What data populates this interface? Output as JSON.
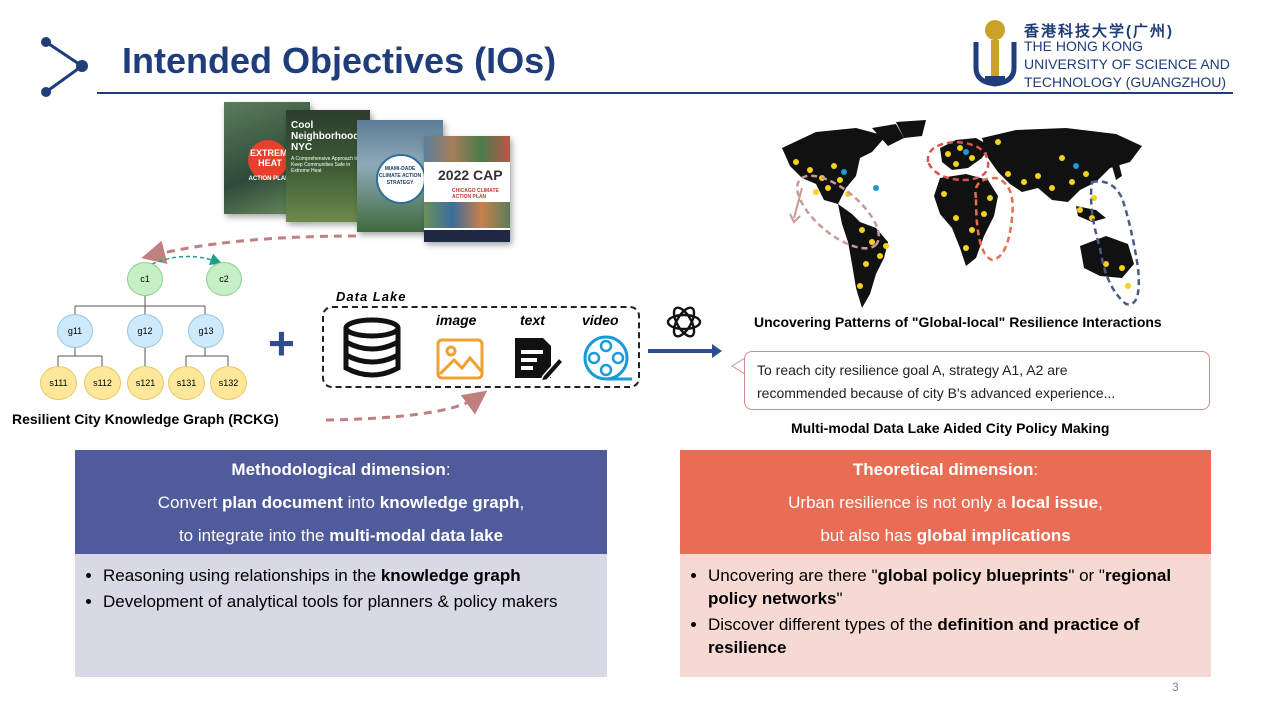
{
  "header": {
    "title": "Intended Objectives (IOs)",
    "university_cn": "香港科技大学(广州)",
    "university_en": [
      "THE HONG KONG",
      "UNIVERSITY OF SCIENCE AND",
      "TECHNOLOGY (GUANGZHOU)"
    ]
  },
  "covers": [
    {
      "text": "EXTREME HEAT",
      "sub": "ACTION PLAN"
    },
    {
      "text": "Cool Neighborhoods NYC",
      "sub": "A Comprehensive Approach to Keep Communities Safe in Extreme Heat"
    },
    {
      "text": "MIAMI-DADE CLIMATE ACTION STRATEGY",
      "sub": ""
    },
    {
      "text": "2022 CAP",
      "sub": "CHICAGO CLIMATE ACTION PLAN"
    }
  ],
  "graph": {
    "nodes": {
      "c1": "c1",
      "c2": "c2",
      "g11": "g11",
      "g12": "g12",
      "g13": "g13",
      "s111": "s111",
      "s112": "s112",
      "s121": "s121",
      "s131": "s131",
      "s132": "s132"
    },
    "label": "Resilient City Knowledge Graph (RCKG)"
  },
  "data_lake": {
    "title": "Data Lake",
    "labels": {
      "image": "image",
      "text": "text",
      "video": "video"
    }
  },
  "map": {
    "caption": "Uncovering Patterns of \"Global-local\" Resilience Interactions"
  },
  "callout": {
    "line1": "To reach city resilience goal A, strategy A1, A2 are",
    "line2": "recommended because of city B's advanced experience...",
    "caption": "Multi-modal Data Lake Aided City Policy Making"
  },
  "methodological": {
    "heading": "Methodological dimension",
    "line1_a": "Convert ",
    "line1_b": "plan document",
    "line1_c": " into  ",
    "line1_d": "knowledge graph",
    "line1_e": ",",
    "line2_a": "to integrate into the ",
    "line2_b": "multi-modal data lake",
    "bullet1_a": "Reasoning using relationships in the ",
    "bullet1_b": "knowledge graph",
    "bullet2": "Development of analytical tools for planners & policy makers"
  },
  "theoretical": {
    "heading": "Theoretical dimension",
    "line1_a": "Urban resilience is not only a ",
    "line1_b": "local issue",
    "line1_c": ",",
    "line2_a": "but also has ",
    "line2_b": "global implications",
    "bullet1_a": "Uncovering are there \"",
    "bullet1_b": "global policy blueprints",
    "bullet1_c": "\" or \"",
    "bullet1_d": "regional policy networks",
    "bullet1_e": "\"",
    "bullet2_a": "Discover different types of the ",
    "bullet2_b": "definition and practice of resilience"
  },
  "colors": {
    "title": "#1f3d7a",
    "methodological_head": "#4f5b9a",
    "methodological_body": "#d9d9e6",
    "theoretical_head": "#e96d55",
    "theoretical_body": "#f7d9d4",
    "accent_cyan": "#1a9ad6",
    "arrow": "#c08080"
  },
  "page_number": "3"
}
